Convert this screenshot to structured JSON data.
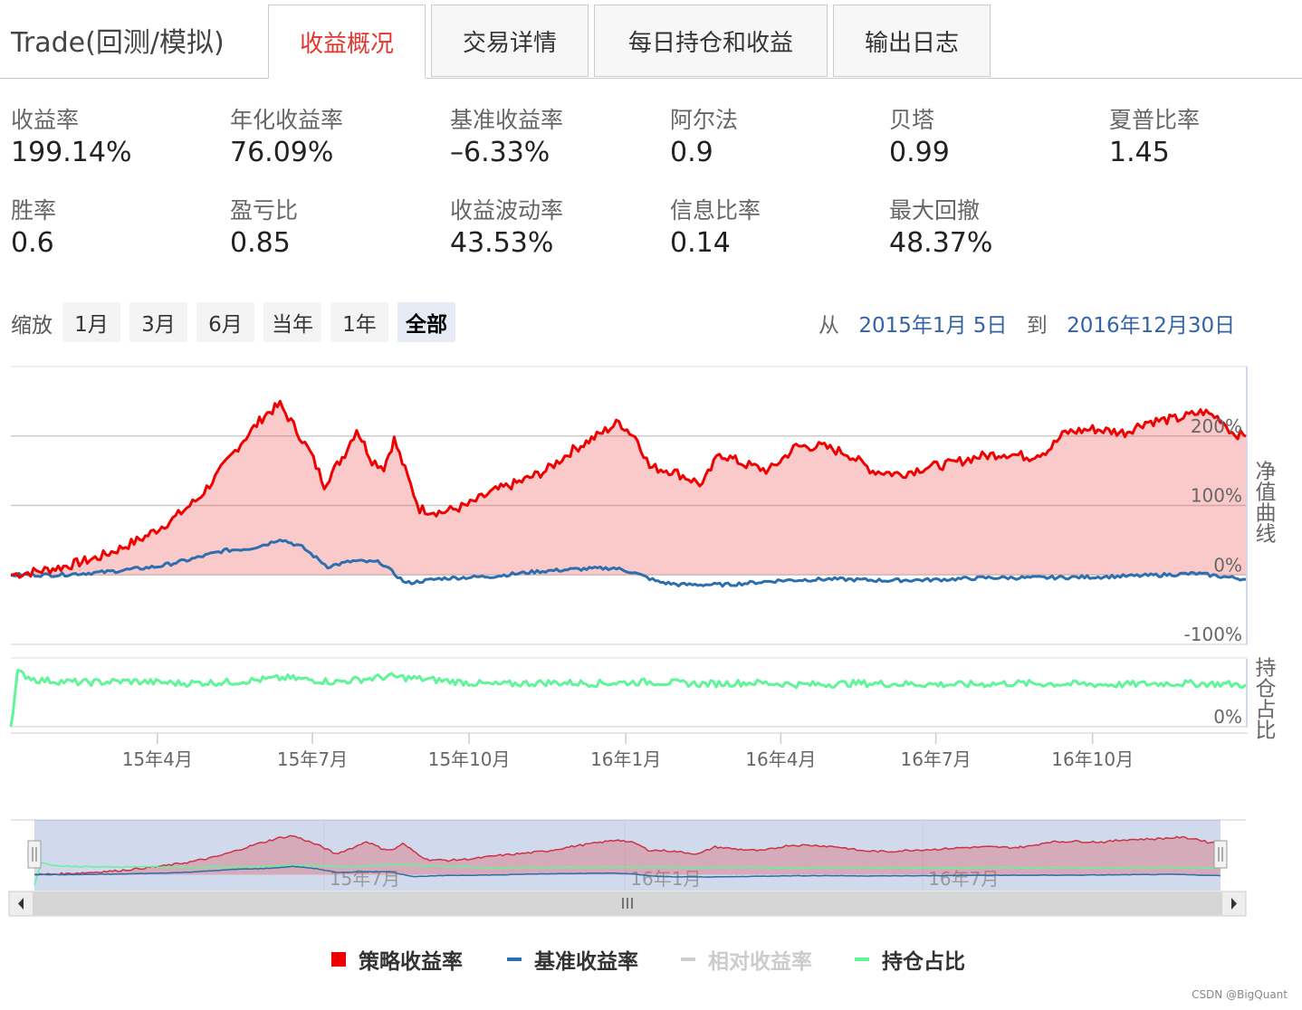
{
  "app": {
    "title": "Trade(回测/模拟)"
  },
  "tabs": [
    {
      "label": "收益概况",
      "active": true
    },
    {
      "label": "交易详情",
      "active": false
    },
    {
      "label": "每日持仓和收益",
      "active": false
    },
    {
      "label": "输出日志",
      "active": false
    }
  ],
  "metrics": [
    {
      "label": "收益率",
      "value": "199.14%"
    },
    {
      "label": "年化收益率",
      "value": "76.09%"
    },
    {
      "label": "基准收益率",
      "value": "–6.33%"
    },
    {
      "label": "阿尔法",
      "value": "0.9"
    },
    {
      "label": "贝塔",
      "value": "0.99"
    },
    {
      "label": "夏普比率",
      "value": "1.45"
    },
    {
      "label": "胜率",
      "value": "0.6"
    },
    {
      "label": "盈亏比",
      "value": "0.85"
    },
    {
      "label": "收益波动率",
      "value": "43.53%"
    },
    {
      "label": "信息比率",
      "value": "0.14"
    },
    {
      "label": "最大回撤",
      "value": "48.37%"
    }
  ],
  "zoom": {
    "label": "缩放",
    "buttons": [
      {
        "label": "1月",
        "active": false
      },
      {
        "label": "3月",
        "active": false
      },
      {
        "label": "6月",
        "active": false
      },
      {
        "label": "当年",
        "active": false
      },
      {
        "label": "1年",
        "active": false
      },
      {
        "label": "全部",
        "active": true
      }
    ]
  },
  "range": {
    "from_label": "从",
    "from": "2015年1月 5日",
    "to_label": "到",
    "to": "2016年12月30日"
  },
  "watermark": "CSDN @BigQuant",
  "chart_data": {
    "type": "line",
    "x_range": [
      "2015-01-05",
      "2016-12-30"
    ],
    "x_ticks": [
      {
        "date": "2015-04-01",
        "label": "15年4月"
      },
      {
        "date": "2015-07-01",
        "label": "15年7月"
      },
      {
        "date": "2015-10-01",
        "label": "15年10月"
      },
      {
        "date": "2016-01-01",
        "label": "16年1月"
      },
      {
        "date": "2016-04-01",
        "label": "16年4月"
      },
      {
        "date": "2016-07-01",
        "label": "16年7月"
      },
      {
        "date": "2016-10-01",
        "label": "16年10月"
      }
    ],
    "navigator_ticks": [
      {
        "date": "2015-07-01",
        "label": "15年7月"
      },
      {
        "date": "2016-01-01",
        "label": "16年1月"
      },
      {
        "date": "2016-07-01",
        "label": "16年7月"
      }
    ],
    "main_panel": {
      "ylabel": "净值曲线",
      "y_range": [
        -100,
        300
      ],
      "y_ticks": [
        {
          "value": 200,
          "label": "200%"
        },
        {
          "value": 100,
          "label": "100%"
        },
        {
          "value": 0,
          "label": "0%"
        },
        {
          "value": -100,
          "label": "-100%"
        }
      ]
    },
    "position_panel": {
      "ylabel": "持仓占比",
      "y_range": [
        0,
        100
      ],
      "y_ticks": [
        {
          "value": 0,
          "label": "0%"
        }
      ]
    },
    "series": [
      {
        "name": "策略收益率",
        "color": "#ee0000",
        "fill": "rgba(238,60,60,0.27)",
        "panel": "main",
        "points": [
          [
            "2015-01-05",
            0
          ],
          [
            "2015-01-20",
            5
          ],
          [
            "2015-02-05",
            12
          ],
          [
            "2015-02-25",
            25
          ],
          [
            "2015-03-10",
            38
          ],
          [
            "2015-03-25",
            55
          ],
          [
            "2015-04-10",
            80
          ],
          [
            "2015-04-25",
            110
          ],
          [
            "2015-05-05",
            140
          ],
          [
            "2015-05-20",
            190
          ],
          [
            "2015-06-03",
            230
          ],
          [
            "2015-06-12",
            245
          ],
          [
            "2015-06-20",
            215
          ],
          [
            "2015-06-30",
            175
          ],
          [
            "2015-07-08",
            130
          ],
          [
            "2015-07-20",
            175
          ],
          [
            "2015-07-27",
            210
          ],
          [
            "2015-08-05",
            165
          ],
          [
            "2015-08-12",
            155
          ],
          [
            "2015-08-18",
            195
          ],
          [
            "2015-08-26",
            140
          ],
          [
            "2015-09-02",
            95
          ],
          [
            "2015-09-15",
            90
          ],
          [
            "2015-09-30",
            100
          ],
          [
            "2015-10-15",
            120
          ],
          [
            "2015-11-01",
            135
          ],
          [
            "2015-11-15",
            150
          ],
          [
            "2015-12-01",
            180
          ],
          [
            "2015-12-15",
            200
          ],
          [
            "2015-12-28",
            220
          ],
          [
            "2016-01-08",
            195
          ],
          [
            "2016-01-15",
            155
          ],
          [
            "2016-01-28",
            150
          ],
          [
            "2016-02-15",
            130
          ],
          [
            "2016-02-25",
            175
          ],
          [
            "2016-03-10",
            160
          ],
          [
            "2016-03-25",
            150
          ],
          [
            "2016-04-10",
            185
          ],
          [
            "2016-04-25",
            185
          ],
          [
            "2016-05-10",
            175
          ],
          [
            "2016-05-25",
            150
          ],
          [
            "2016-06-10",
            145
          ],
          [
            "2016-06-25",
            155
          ],
          [
            "2016-07-10",
            160
          ],
          [
            "2016-07-25",
            170
          ],
          [
            "2016-08-10",
            175
          ],
          [
            "2016-08-25",
            170
          ],
          [
            "2016-09-05",
            180
          ],
          [
            "2016-09-15",
            205
          ],
          [
            "2016-10-01",
            210
          ],
          [
            "2016-10-20",
            205
          ],
          [
            "2016-11-01",
            220
          ],
          [
            "2016-11-20",
            225
          ],
          [
            "2016-12-05",
            235
          ],
          [
            "2016-12-15",
            225
          ],
          [
            "2016-12-22",
            205
          ],
          [
            "2016-12-30",
            199.14
          ]
        ]
      },
      {
        "name": "基准收益率",
        "color": "#2c6eae",
        "panel": "main",
        "points": [
          [
            "2015-01-05",
            0
          ],
          [
            "2015-02-01",
            0
          ],
          [
            "2015-03-01",
            4
          ],
          [
            "2015-04-01",
            12
          ],
          [
            "2015-04-20",
            22
          ],
          [
            "2015-05-10",
            35
          ],
          [
            "2015-05-25",
            38
          ],
          [
            "2015-06-05",
            45
          ],
          [
            "2015-06-12",
            52
          ],
          [
            "2015-06-25",
            40
          ],
          [
            "2015-07-10",
            12
          ],
          [
            "2015-07-25",
            20
          ],
          [
            "2015-08-10",
            18
          ],
          [
            "2015-08-25",
            -12
          ],
          [
            "2015-09-15",
            -5
          ],
          [
            "2015-10-15",
            -2
          ],
          [
            "2015-11-10",
            5
          ],
          [
            "2015-12-01",
            8
          ],
          [
            "2015-12-25",
            10
          ],
          [
            "2016-01-05",
            4
          ],
          [
            "2016-01-20",
            -10
          ],
          [
            "2016-02-01",
            -14
          ],
          [
            "2016-03-01",
            -14
          ],
          [
            "2016-04-01",
            -8
          ],
          [
            "2016-05-01",
            -6
          ],
          [
            "2016-06-01",
            -8
          ],
          [
            "2016-07-01",
            -7
          ],
          [
            "2016-08-01",
            -4
          ],
          [
            "2016-09-01",
            -4
          ],
          [
            "2016-10-01",
            -3
          ],
          [
            "2016-11-01",
            -1
          ],
          [
            "2016-12-01",
            2
          ],
          [
            "2016-12-30",
            -6.33
          ]
        ]
      },
      {
        "name": "相对收益率",
        "color": "#cccccc",
        "panel": "main",
        "visible": false,
        "points": []
      },
      {
        "name": "持仓占比",
        "color": "#5ff598",
        "panel": "position",
        "points": [
          [
            "2015-01-05",
            0
          ],
          [
            "2015-01-09",
            80
          ],
          [
            "2015-01-20",
            69
          ],
          [
            "2015-02-15",
            65
          ],
          [
            "2015-03-15",
            67
          ],
          [
            "2015-04-15",
            64
          ],
          [
            "2015-05-15",
            66
          ],
          [
            "2015-06-15",
            72
          ],
          [
            "2015-07-15",
            66
          ],
          [
            "2015-08-15",
            74
          ],
          [
            "2015-09-15",
            68
          ],
          [
            "2015-10-15",
            62
          ],
          [
            "2015-11-15",
            65
          ],
          [
            "2015-12-15",
            64
          ],
          [
            "2016-01-15",
            66
          ],
          [
            "2016-02-15",
            63
          ],
          [
            "2016-03-15",
            65
          ],
          [
            "2016-04-15",
            62
          ],
          [
            "2016-05-15",
            64
          ],
          [
            "2016-06-15",
            63
          ],
          [
            "2016-07-15",
            62
          ],
          [
            "2016-08-15",
            64
          ],
          [
            "2016-09-15",
            63
          ],
          [
            "2016-10-15",
            62
          ],
          [
            "2016-11-15",
            64
          ],
          [
            "2016-12-15",
            63
          ],
          [
            "2016-12-30",
            62
          ]
        ]
      }
    ],
    "legend_position": "bottom"
  }
}
